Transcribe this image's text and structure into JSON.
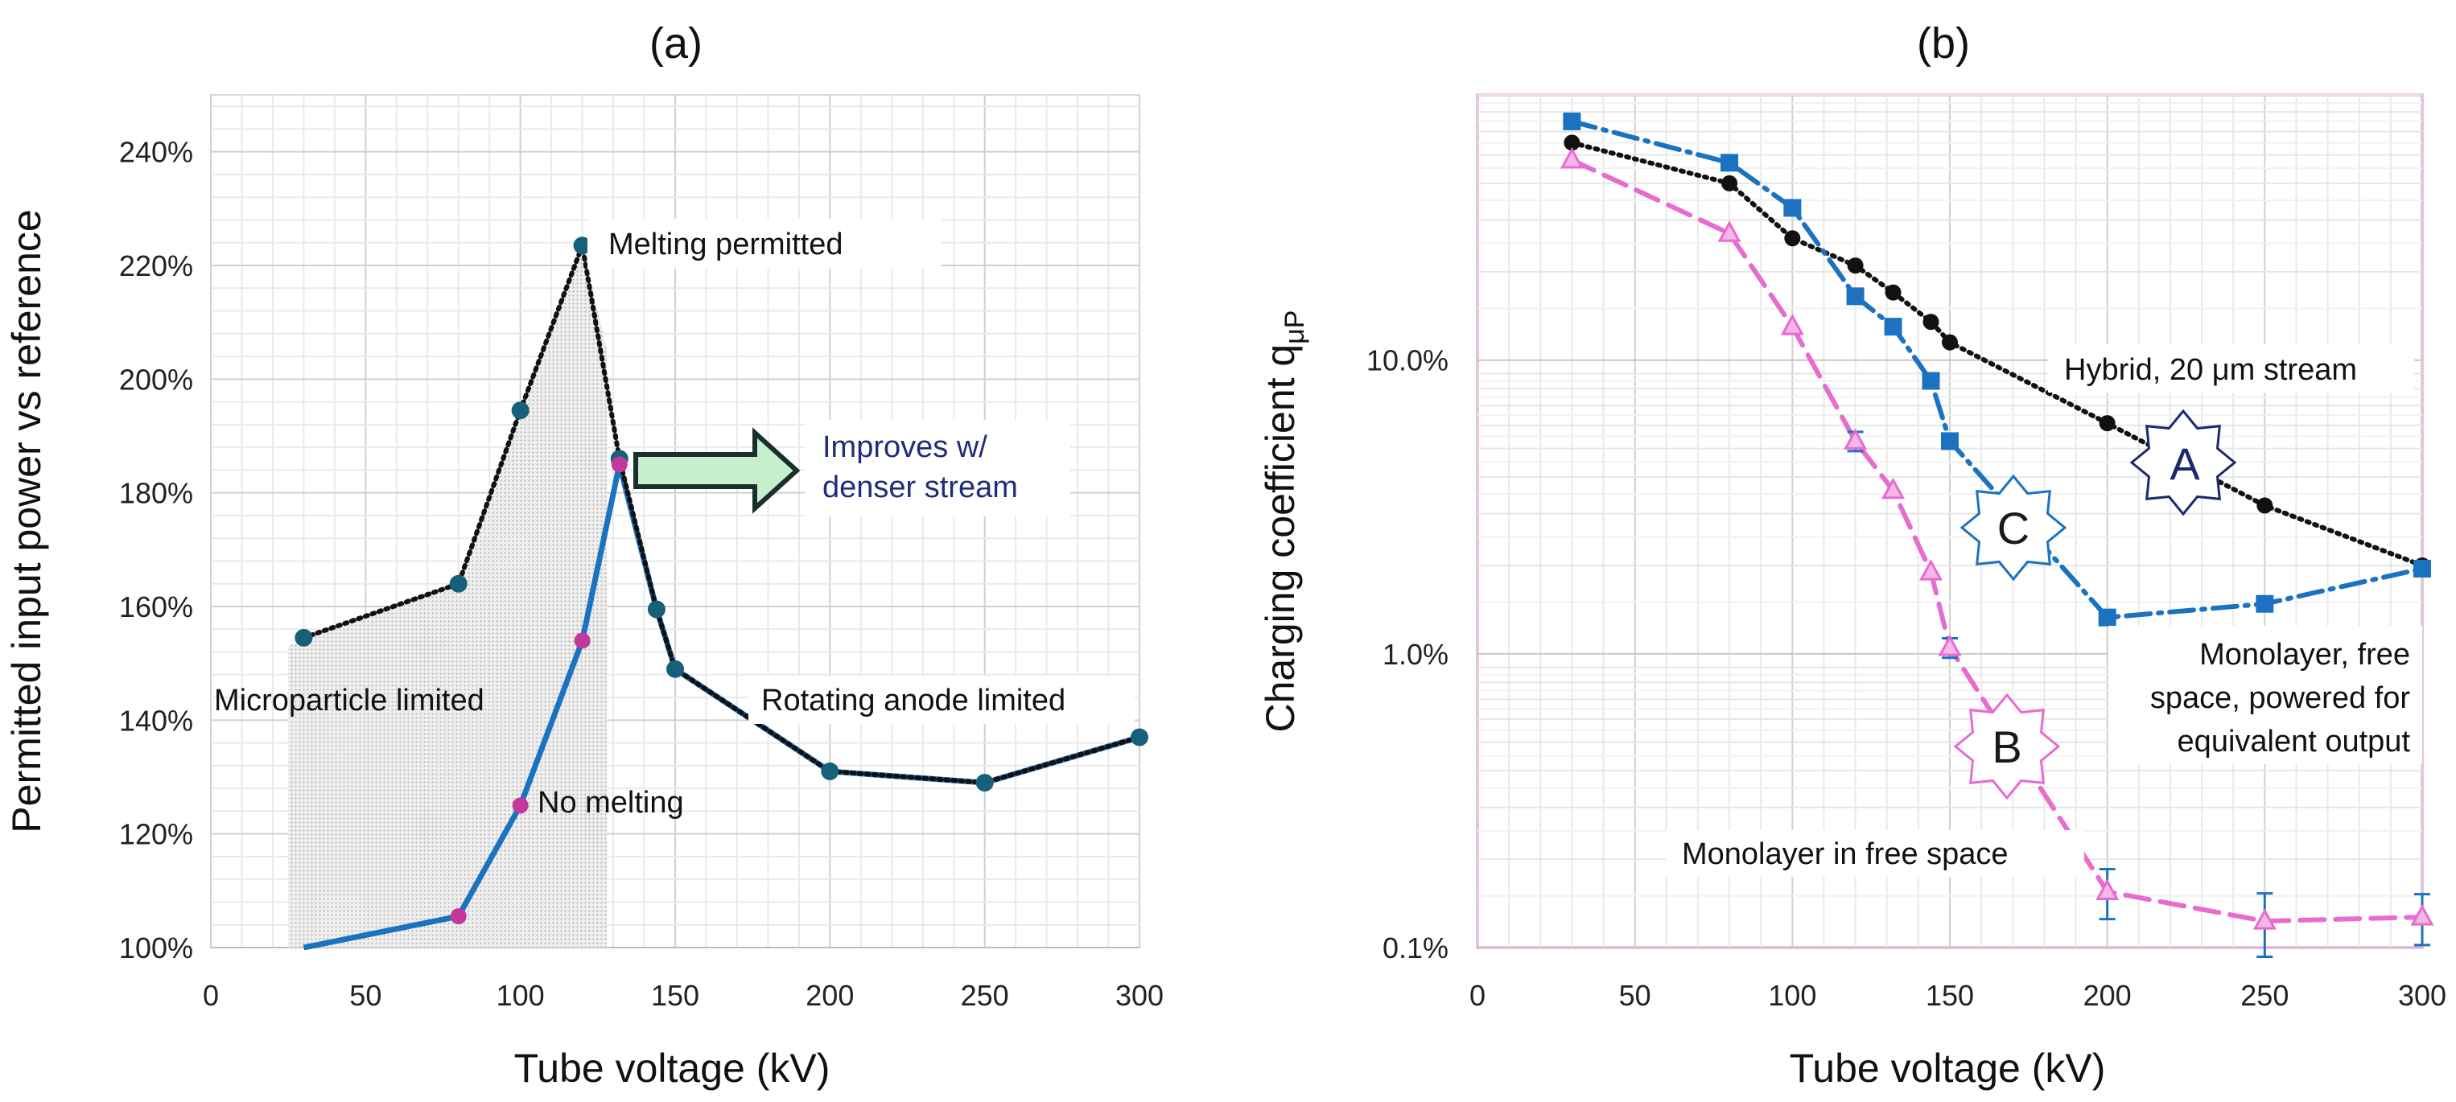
{
  "chart_data": [
    {
      "type": "line",
      "title": "(a)",
      "xlabel": "Tube voltage (kV)",
      "ylabel": "Permitted input power vs reference",
      "xlim": [
        0,
        300
      ],
      "ylim": [
        100,
        250
      ],
      "x_ticks": [
        "0",
        "50",
        "100",
        "150",
        "200",
        "250",
        "300"
      ],
      "y_ticks": [
        "100%",
        "120%",
        "140%",
        "160%",
        "180%",
        "200%",
        "220%",
        "240%"
      ],
      "grid": true,
      "series": [
        {
          "style": "dotted-black",
          "color": "#111111",
          "x": [
            30,
            80,
            100,
            120,
            132,
            144,
            150,
            200,
            250,
            300
          ],
          "y": [
            154.5,
            164,
            194.5,
            223.5,
            186,
            159.5,
            149,
            131,
            129,
            137
          ]
        },
        {
          "style": "solid-blue",
          "color": "#1b72c0",
          "x": [
            30,
            80,
            100,
            120,
            132,
            144,
            150,
            200,
            250,
            300
          ],
          "y": [
            100,
            105.5,
            125,
            154,
            185,
            159.5,
            149,
            131,
            129,
            137
          ]
        }
      ],
      "marker_colors": {
        "teal": "#17607a",
        "magenta": "#c2389c"
      },
      "shaded_region_x": [
        25,
        128
      ],
      "annotations": {
        "melting_permitted": "Melting permitted",
        "improves": "Improves w/",
        "denser_stream": "denser stream",
        "microparticle_limited": "Microparticle limited",
        "rotating_anode_limited": "Rotating anode limited",
        "no_melting": "No melting"
      }
    },
    {
      "type": "line",
      "title": "(b)",
      "xlabel": "Tube voltage (kV)",
      "ylabel": "Charging coefficient q",
      "ylabel_subscript": "μP",
      "xlim": [
        0,
        300
      ],
      "ylim": [
        0.1,
        80
      ],
      "yscale": "log",
      "x_ticks": [
        "0",
        "50",
        "100",
        "150",
        "200",
        "250",
        "300"
      ],
      "y_ticks": [
        {
          "value": 0.1,
          "label": "0.1%"
        },
        {
          "value": 1,
          "label": "1.0%"
        },
        {
          "value": 10,
          "label": "10.0%"
        }
      ],
      "grid": true,
      "series": [
        {
          "name": "Hybrid, 20 μm stream",
          "badge": "A",
          "color": "#111111",
          "marker": "circle",
          "style": "dotted",
          "x": [
            30,
            80,
            100,
            120,
            132,
            144,
            150,
            200,
            250,
            300
          ],
          "y": [
            55,
            40,
            26,
            21,
            17,
            13.5,
            11.5,
            6.1,
            3.2,
            2
          ]
        },
        {
          "name": "Monolayer in free space",
          "badge": "B",
          "color": "#e86bd0",
          "marker": "triangle",
          "style": "dashed",
          "x": [
            30,
            80,
            100,
            120,
            132,
            144,
            150,
            200,
            250,
            300
          ],
          "y": [
            48,
            27,
            13,
            5.3,
            3.6,
            1.9,
            1.05,
            0.155,
            0.123,
            0.127
          ],
          "error": [
            0,
            0,
            0,
            0.4,
            0,
            0,
            0.08,
            0.03,
            0.03,
            0.025
          ]
        },
        {
          "name": "Monolayer, free space, powered for equivalent output",
          "name_lines": [
            "Monolayer, free",
            "space, powered for",
            "equivalent output"
          ],
          "badge": "C",
          "color": "#1b72c0",
          "marker": "square",
          "style": "dash-dot",
          "x": [
            30,
            80,
            100,
            120,
            132,
            144,
            150,
            200,
            250,
            300
          ],
          "y": [
            65,
            47,
            33,
            16.5,
            13,
            8.5,
            5.3,
            1.33,
            1.48,
            1.95
          ]
        }
      ]
    }
  ]
}
